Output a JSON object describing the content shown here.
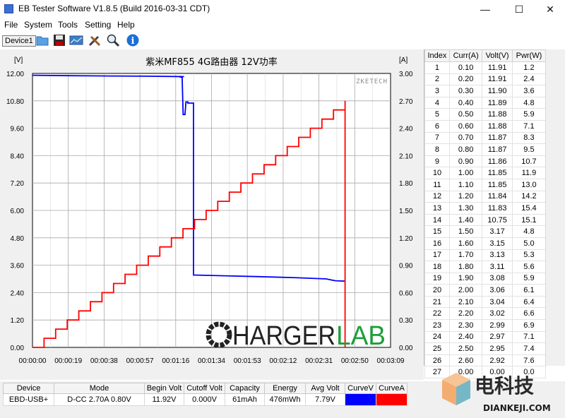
{
  "window": {
    "title": "EB Tester Software V1.8.5 (Build 2016-03-31 CDT)"
  },
  "menu": [
    "File",
    "System",
    "Tools",
    "Setting",
    "Help"
  ],
  "toolbar": {
    "device": "Device1"
  },
  "chart_data": {
    "type": "line",
    "title": "紫米MF855 4G路由器 12V功率",
    "left_unit": "[V]",
    "right_unit": "[A]",
    "brand": "ZKETECH",
    "x_ticks": [
      "00:00:00",
      "00:00:19",
      "00:00:38",
      "00:00:57",
      "00:01:16",
      "00:01:34",
      "00:01:53",
      "00:02:12",
      "00:02:31",
      "00:02:50",
      "00:03:09"
    ],
    "y_left_ticks": [
      "12.00",
      "10.80",
      "9.60",
      "8.40",
      "7.20",
      "6.00",
      "4.80",
      "3.60",
      "2.40",
      "1.20",
      "0.00"
    ],
    "y_right_ticks": [
      "3.00",
      "2.70",
      "2.40",
      "2.10",
      "1.80",
      "1.50",
      "1.20",
      "0.90",
      "0.60",
      "0.30",
      "0.00"
    ],
    "xlim": [
      0,
      189
    ],
    "ylim_left": [
      0,
      12
    ],
    "ylim_right": [
      0,
      3
    ],
    "grid": true,
    "series": [
      {
        "axis": "left",
        "color": "#0000ff",
        "points": [
          [
            0,
            11.92
          ],
          [
            20,
            11.9
          ],
          [
            40,
            11.89
          ],
          [
            60,
            11.88
          ],
          [
            80,
            11.86
          ],
          [
            78,
            11.86
          ],
          [
            78,
            11.84
          ],
          [
            79,
            11.83
          ],
          [
            79.5,
            10.2
          ],
          [
            80.5,
            10.2
          ],
          [
            81,
            10.75
          ],
          [
            82,
            10.75
          ],
          [
            82,
            10.7
          ],
          [
            85,
            10.7
          ],
          [
            85,
            3.17
          ],
          [
            100,
            3.14
          ],
          [
            120,
            3.1
          ],
          [
            140,
            3.05
          ],
          [
            155,
            3.0
          ],
          [
            158,
            2.95
          ],
          [
            160,
            2.92
          ],
          [
            165,
            2.9
          ]
        ]
      },
      {
        "axis": "right",
        "color": "#ff0000",
        "current_steps": [
          0,
          0.1,
          0.2,
          0.3,
          0.4,
          0.5,
          0.6,
          0.7,
          0.8,
          0.9,
          1.0,
          1.1,
          1.2,
          1.3,
          1.4,
          1.5,
          1.6,
          1.7,
          1.8,
          1.9,
          2.0,
          2.1,
          2.2,
          2.3,
          2.4,
          2.5,
          2.6,
          2.7,
          0
        ]
      }
    ]
  },
  "data_table": {
    "headers": [
      "Index",
      "Curr(A)",
      "Volt(V)",
      "Pwr(W)"
    ],
    "rows": [
      [
        "1",
        "0.10",
        "11.91",
        "1.2"
      ],
      [
        "2",
        "0.20",
        "11.91",
        "2.4"
      ],
      [
        "3",
        "0.30",
        "11.90",
        "3.6"
      ],
      [
        "4",
        "0.40",
        "11.89",
        "4.8"
      ],
      [
        "5",
        "0.50",
        "11.88",
        "5.9"
      ],
      [
        "6",
        "0.60",
        "11.88",
        "7.1"
      ],
      [
        "7",
        "0.70",
        "11.87",
        "8.3"
      ],
      [
        "8",
        "0.80",
        "11.87",
        "9.5"
      ],
      [
        "9",
        "0.90",
        "11.86",
        "10.7"
      ],
      [
        "10",
        "1.00",
        "11.85",
        "11.9"
      ],
      [
        "11",
        "1.10",
        "11.85",
        "13.0"
      ],
      [
        "12",
        "1.20",
        "11.84",
        "14.2"
      ],
      [
        "13",
        "1.30",
        "11.83",
        "15.4"
      ],
      [
        "14",
        "1.40",
        "10.75",
        "15.1"
      ],
      [
        "15",
        "1.50",
        "3.17",
        "4.8"
      ],
      [
        "16",
        "1.60",
        "3.15",
        "5.0"
      ],
      [
        "17",
        "1.70",
        "3.13",
        "5.3"
      ],
      [
        "18",
        "1.80",
        "3.11",
        "5.6"
      ],
      [
        "19",
        "1.90",
        "3.08",
        "5.9"
      ],
      [
        "20",
        "2.00",
        "3.06",
        "6.1"
      ],
      [
        "21",
        "2.10",
        "3.04",
        "6.4"
      ],
      [
        "22",
        "2.20",
        "3.02",
        "6.6"
      ],
      [
        "23",
        "2.30",
        "2.99",
        "6.9"
      ],
      [
        "24",
        "2.40",
        "2.97",
        "7.1"
      ],
      [
        "25",
        "2.50",
        "2.95",
        "7.4"
      ],
      [
        "26",
        "2.60",
        "2.92",
        "7.6"
      ],
      [
        "27",
        "0.00",
        "0.00",
        "0.0"
      ]
    ]
  },
  "summary": {
    "headers": [
      "Device",
      "Mode",
      "Begin Volt",
      "Cutoff Volt",
      "Capacity",
      "Energy",
      "Avg Volt",
      "CurveV",
      "CurveA"
    ],
    "values": [
      "EBD-USB+",
      "D-CC  2.70A  0.80V",
      "11.92V",
      "0.000V",
      "61mAh",
      "476mWh",
      "7.79V"
    ],
    "curve_colors": [
      "#0000ff",
      "#ff0000"
    ]
  },
  "logo": {
    "part1": "HARGER",
    "part2": "LAB"
  },
  "watermark": {
    "cn": "电科技",
    "en": "DIANKEJI.COM"
  }
}
